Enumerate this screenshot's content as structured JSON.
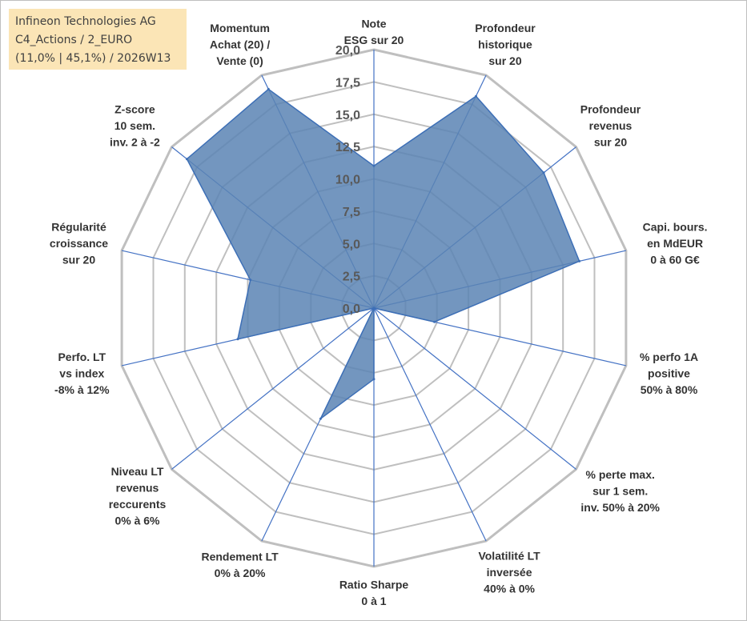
{
  "header": {
    "company": "Infineon Technologies AG",
    "category": "C4_Actions / 2_EURO",
    "stats": "(11,0% | 45,1%) / 2026W13"
  },
  "chart_data": {
    "type": "radar",
    "title": "Infineon Technologies AG",
    "range": [
      0,
      20
    ],
    "tick_step": 2.5,
    "tick_labels": [
      "0,0",
      "2,5",
      "5,0",
      "7,5",
      "10,0",
      "12,5",
      "15,0",
      "17,5",
      "20,0"
    ],
    "axes": [
      [
        "Note",
        "ESG sur 20"
      ],
      [
        "Profondeur",
        "historique",
        "sur 20"
      ],
      [
        "Profondeur",
        "revenus",
        "sur 20"
      ],
      [
        "Capi. bours.",
        "en MdEUR",
        "0 à 60 G€"
      ],
      [
        "% perfo 1A",
        "positive",
        "50% à 80%"
      ],
      [
        "% perte max.",
        "sur 1 sem.",
        "inv. 50% à 20%"
      ],
      [
        "Volatilité LT",
        "inversée",
        "40% à 0%"
      ],
      [
        "Ratio Sharpe",
        "0 à 1"
      ],
      [
        "Rendement LT",
        "0% à 20%"
      ],
      [
        "Niveau LT",
        "revenus",
        "reccurents",
        "0% à 6%"
      ],
      [
        "Perfo. LT",
        "vs index",
        "-8% à 12%"
      ],
      [
        "Régularité",
        "croissance",
        "sur 20"
      ],
      [
        "Z-score",
        "10 sem.",
        "inv. 2 à -2"
      ],
      [
        "Momentum",
        "Achat (20) /",
        "Vente (0)"
      ]
    ],
    "series": [
      {
        "name": "Infineon Technologies AG",
        "values": [
          11.0,
          18.2,
          16.8,
          16.3,
          4.8,
          0,
          0,
          5.5,
          9.5,
          0,
          10.8,
          9.8,
          18.5,
          18.8
        ],
        "color": "#4f7db0"
      }
    ],
    "colors": {
      "grid": "#bfbfbf",
      "spoke": "#4472c4",
      "fill": "#5b84b4",
      "stroke": "#3d6fb6"
    }
  }
}
